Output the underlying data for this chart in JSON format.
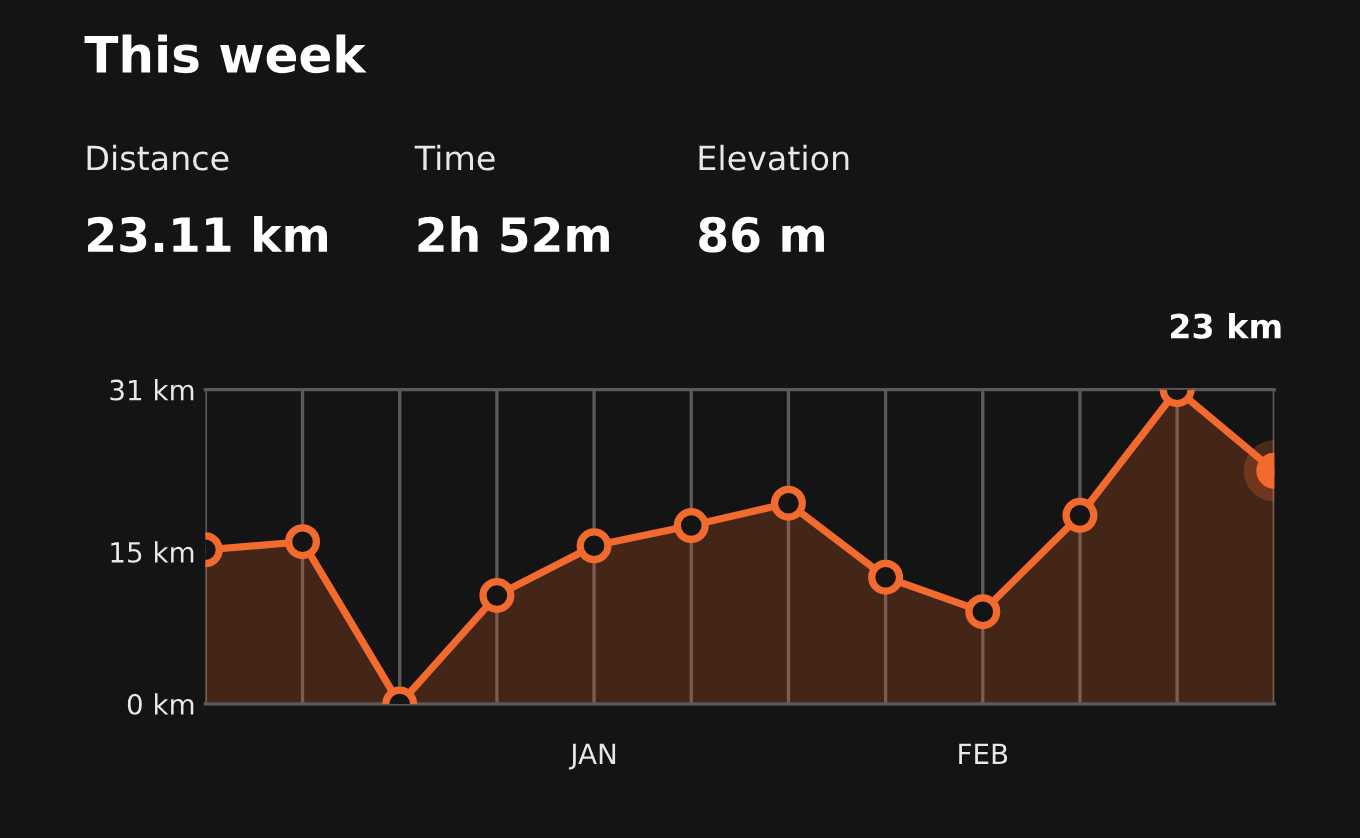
{
  "chart_data": {
    "type": "area",
    "title": "This week",
    "annotations": [
      "Distance",
      "23.11 km",
      "Time",
      "2h 52m",
      "Elevation",
      "86 m",
      "23 km"
    ],
    "categories": [
      null,
      null,
      null,
      null,
      "JAN",
      null,
      null,
      null,
      "FEB",
      null,
      null,
      null
    ],
    "series": [
      {
        "color": "#f26a2e",
        "values": [
          15.2,
          16.0,
          0,
          10.7,
          15.6,
          17.6,
          19.8,
          12.5,
          9.1,
          18.6,
          31,
          23
        ]
      }
    ],
    "ylim": [
      0,
      31
    ],
    "yticks": [
      {
        "value": 0,
        "label": "0 km"
      },
      {
        "value": 15,
        "label": "15 km"
      },
      {
        "value": 31,
        "label": "31 km"
      }
    ],
    "grid": "x",
    "marker": "circle",
    "line_style": "solid"
  }
}
